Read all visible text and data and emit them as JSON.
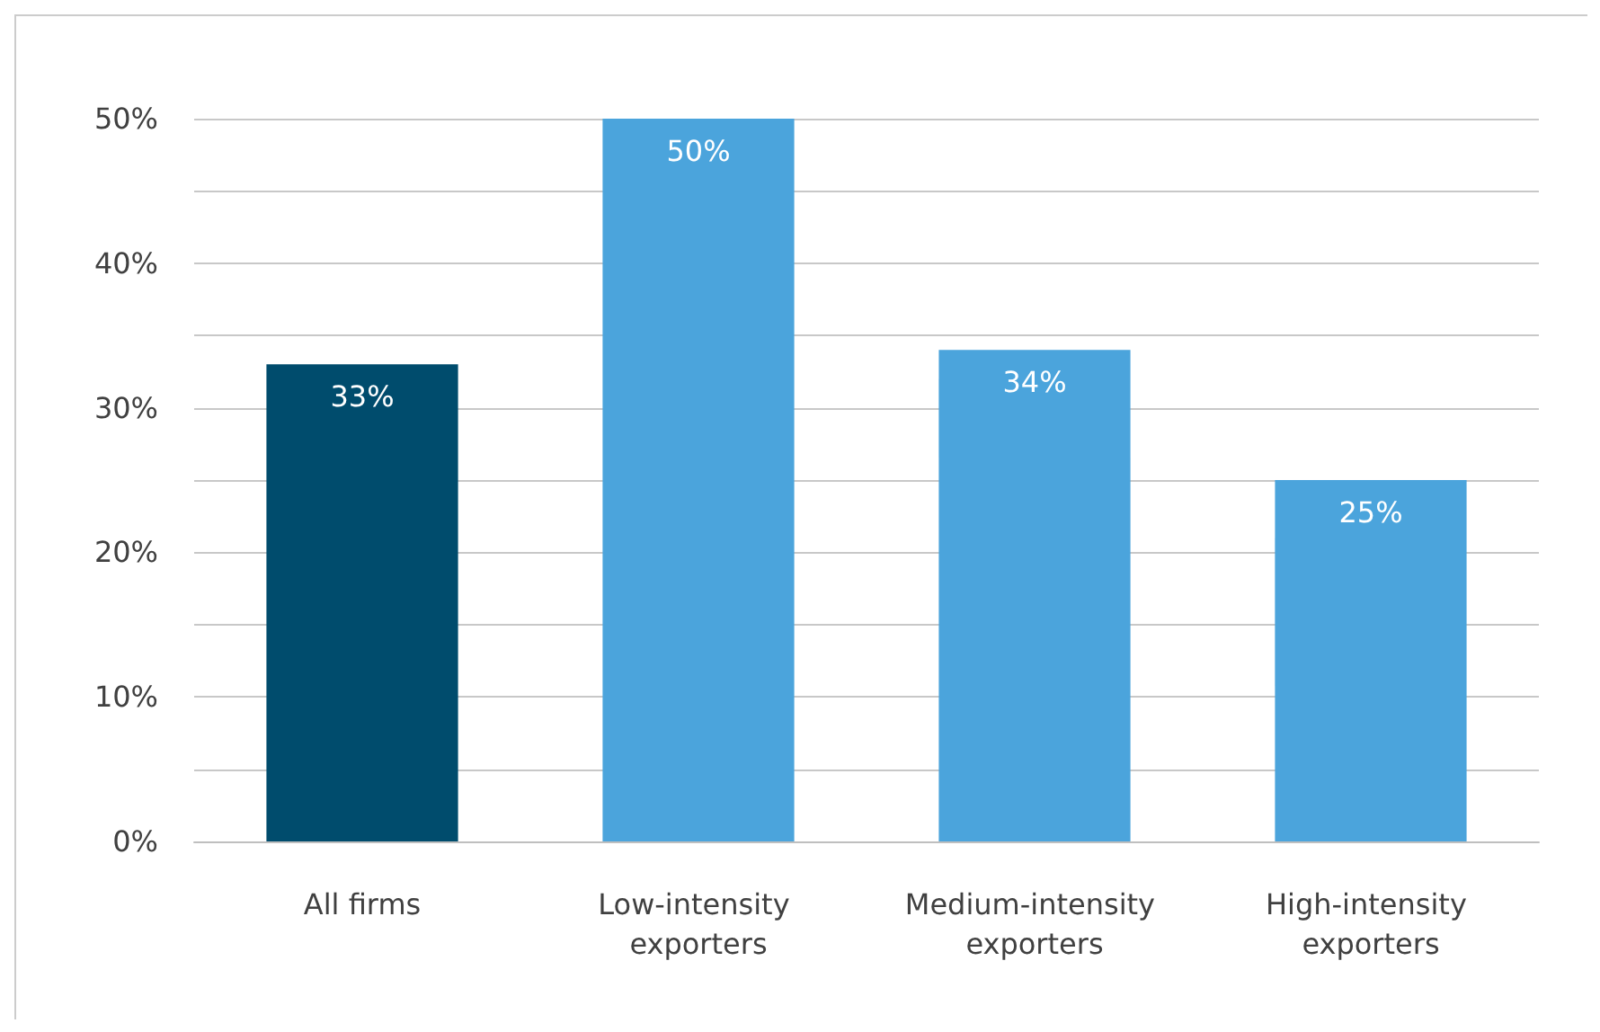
{
  "chart_data": {
    "type": "bar",
    "categories": [
      "All firms",
      "Low-intensity exporters",
      "Medium-intensity exporters",
      "High-intensity exporters"
    ],
    "values": [
      33,
      50,
      34,
      25
    ],
    "colors": [
      "#004c6d",
      "#4ba4dc",
      "#4ba4dc",
      "#4ba4dc"
    ],
    "ylim": [
      0,
      50
    ],
    "yticks": [
      {
        "value": 0,
        "label": "0%"
      },
      {
        "value": 5,
        "label": null
      },
      {
        "value": 10,
        "label": "10%"
      },
      {
        "value": 15,
        "label": null
      },
      {
        "value": 20,
        "label": "20%"
      },
      {
        "value": 25,
        "label": null
      },
      {
        "value": 30,
        "label": "30%"
      },
      {
        "value": 35,
        "label": null
      },
      {
        "value": 40,
        "label": "40%"
      },
      {
        "value": 45,
        "label": null
      },
      {
        "value": 50,
        "label": "50%"
      }
    ],
    "value_labels": [
      "33%",
      "50%",
      "34%",
      "25%"
    ],
    "grid": "y"
  }
}
